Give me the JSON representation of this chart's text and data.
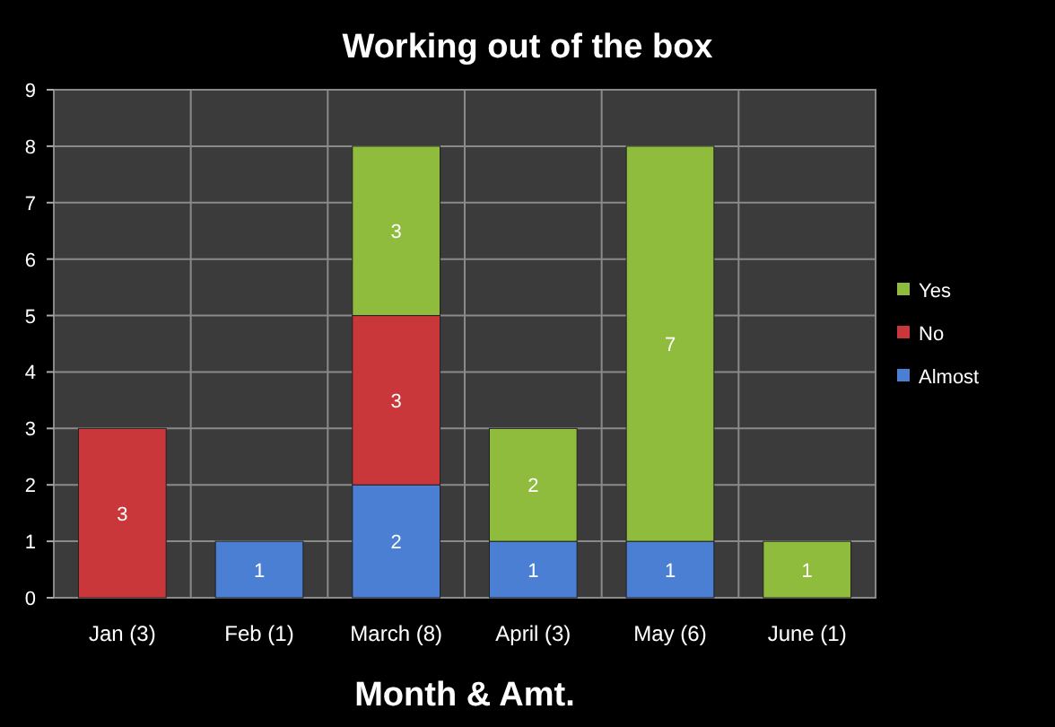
{
  "chart_data": {
    "type": "bar",
    "title": "Working out of the box",
    "xlabel": "Month & Amt.",
    "categories": [
      "Jan (3)",
      "Feb (1)",
      "March (8)",
      "April (3)",
      "May (6)",
      "June (1)"
    ],
    "stacked": true,
    "ylim": [
      0,
      9
    ],
    "yticks": [
      0,
      1,
      2,
      3,
      4,
      5,
      6,
      7,
      8,
      9
    ],
    "grid": true,
    "legend": "right",
    "data_labels": true,
    "series": [
      {
        "name": "Almost",
        "color": "#4a7fd4",
        "values": [
          null,
          1,
          2,
          1,
          1,
          null
        ]
      },
      {
        "name": "No",
        "color": "#c9373a",
        "values": [
          3,
          null,
          3,
          null,
          null,
          null
        ]
      },
      {
        "name": "Yes",
        "color": "#8fbc3c",
        "values": [
          null,
          null,
          3,
          2,
          7,
          1
        ]
      }
    ]
  }
}
